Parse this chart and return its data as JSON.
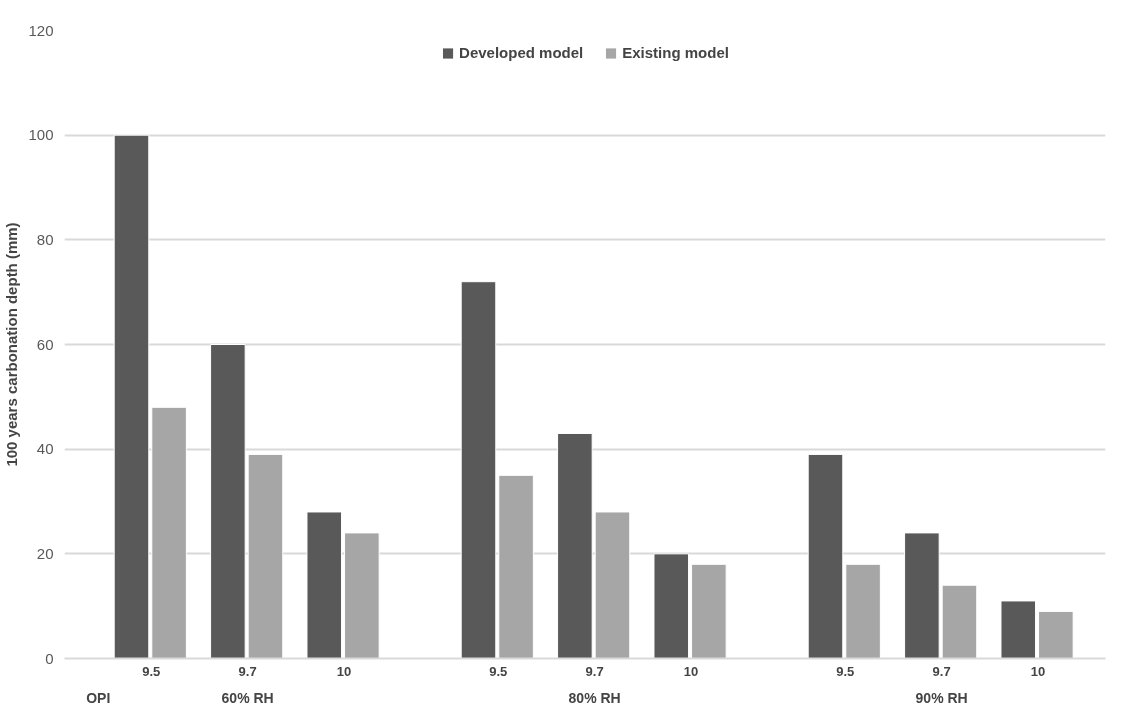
{
  "chart_data": {
    "type": "bar",
    "ylabel": "100 years carbonation depth (mm)",
    "categories": [
      "9.5",
      "9.7",
      "10",
      "9.5",
      "9.7",
      "10",
      "9.5",
      "9.7",
      "10"
    ],
    "series": [
      {
        "name": "Developed model",
        "color": "#595959",
        "values": [
          100,
          60,
          28,
          72,
          43,
          20,
          39,
          24,
          11
        ]
      },
      {
        "name": "Existing model",
        "color": "#a6a6a6",
        "values": [
          48,
          39,
          24,
          35,
          28,
          18,
          18,
          14,
          9
        ]
      }
    ],
    "ylim": [
      0,
      120
    ],
    "yticks": [
      0,
      20,
      40,
      60,
      80,
      100,
      120
    ],
    "grid": "y",
    "legend": "top",
    "annotations": [
      "OPI",
      "60% RH",
      "80% RH",
      "90% RH"
    ]
  }
}
